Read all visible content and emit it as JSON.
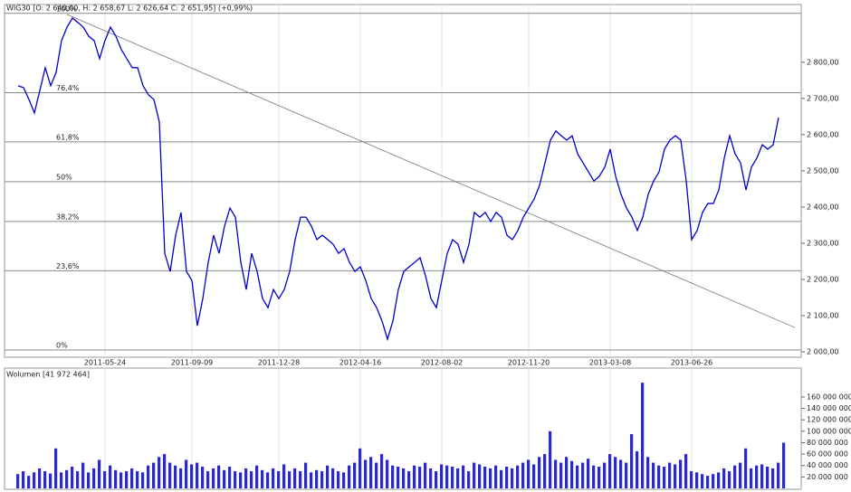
{
  "chart_data": [
    {
      "type": "line",
      "title": "WIG30 [O: 2 640,00, H: 2 658,67  L: 2 626,64  C: 2 651,95] (+0,99%)",
      "categories": [
        null,
        null,
        null,
        null,
        null,
        null,
        null,
        null,
        null,
        null,
        null,
        null,
        null,
        null,
        null,
        null,
        "2011-05-24",
        null,
        null,
        null,
        null,
        null,
        null,
        null,
        null,
        null,
        null,
        null,
        null,
        null,
        null,
        null,
        "2011-09-09",
        null,
        null,
        null,
        null,
        null,
        null,
        null,
        null,
        null,
        null,
        null,
        null,
        null,
        null,
        null,
        "2011-12-28",
        null,
        null,
        null,
        null,
        null,
        null,
        null,
        null,
        null,
        null,
        null,
        null,
        null,
        null,
        "2012-04-16",
        null,
        null,
        null,
        null,
        null,
        null,
        null,
        null,
        null,
        null,
        null,
        null,
        null,
        null,
        "2012-08-02",
        null,
        null,
        null,
        null,
        null,
        null,
        null,
        null,
        null,
        null,
        null,
        null,
        null,
        null,
        null,
        "2012-11-20",
        null,
        null,
        null,
        null,
        null,
        null,
        null,
        null,
        null,
        null,
        null,
        null,
        null,
        null,
        "2013-03-08",
        null,
        null,
        null,
        null,
        null,
        null,
        null,
        null,
        null,
        null,
        null,
        null,
        null,
        null,
        "2013-06-26",
        null,
        null,
        null,
        null,
        null,
        null,
        null,
        null,
        null,
        null,
        null,
        null,
        null,
        null,
        null,
        null
      ],
      "values": [
        2735,
        2730,
        2697,
        2660,
        2722,
        2785,
        2735,
        2772,
        2860,
        2897,
        2922,
        2910,
        2897,
        2872,
        2860,
        2810,
        2860,
        2897,
        2872,
        2835,
        2810,
        2785,
        2785,
        2735,
        2710,
        2697,
        2635,
        2272,
        2222,
        2322,
        2385,
        2222,
        2197,
        2072,
        2147,
        2247,
        2322,
        2272,
        2347,
        2397,
        2372,
        2247,
        2172,
        2272,
        2222,
        2147,
        2122,
        2172,
        2147,
        2172,
        2222,
        2310,
        2372,
        2372,
        2347,
        2310,
        2322,
        2310,
        2297,
        2272,
        2285,
        2247,
        2222,
        2235,
        2197,
        2147,
        2122,
        2085,
        2035,
        2085,
        2172,
        2222,
        2235,
        2247,
        2260,
        2210,
        2147,
        2122,
        2197,
        2272,
        2310,
        2297,
        2247,
        2297,
        2385,
        2372,
        2385,
        2360,
        2385,
        2372,
        2322,
        2310,
        2335,
        2372,
        2397,
        2422,
        2460,
        2522,
        2585,
        2610,
        2597,
        2585,
        2597,
        2547,
        2522,
        2497,
        2472,
        2485,
        2510,
        2560,
        2485,
        2435,
        2397,
        2372,
        2335,
        2372,
        2435,
        2472,
        2497,
        2560,
        2585,
        2597,
        2585,
        2472,
        2310,
        2335,
        2385,
        2410,
        2410,
        2447,
        2535,
        2597,
        2547,
        2522,
        2447,
        2510,
        2535,
        2572,
        2560,
        2572,
        2647
      ],
      "color": "#0000cc",
      "ylim": [
        1985,
        2957
      ],
      "yticks": [
        {
          "value": 2000,
          "label": "2 000,00"
        },
        {
          "value": 2100,
          "label": "2 100,00"
        },
        {
          "value": 2200,
          "label": "2 200,00"
        },
        {
          "value": 2300,
          "label": "2 300,00"
        },
        {
          "value": 2400,
          "label": "2 400,00"
        },
        {
          "value": 2500,
          "label": "2 500,00"
        },
        {
          "value": 2600,
          "label": "2 600,00"
        },
        {
          "value": 2700,
          "label": "2 700,00"
        },
        {
          "value": 2800,
          "label": "2 800,00"
        }
      ],
      "levels": [
        {
          "value": 2935,
          "label": "100%"
        },
        {
          "value": 2716,
          "label": "76,4%"
        },
        {
          "value": 2580,
          "label": "61,8%"
        },
        {
          "value": 2470,
          "label": "50%"
        },
        {
          "value": 2360,
          "label": "38,2%"
        },
        {
          "value": 2224,
          "label": "23,6%"
        },
        {
          "value": 2005,
          "label": "0%"
        }
      ],
      "trendline": {
        "x": [
          9,
          143
        ],
        "y": [
          2932,
          2067
        ]
      },
      "grid": true
    },
    {
      "type": "bar",
      "title": "Wolumen [41 972 464]",
      "values": [
        25000000,
        30000000,
        22000000,
        28000000,
        35000000,
        30000000,
        26000000,
        70000000,
        28000000,
        32000000,
        38000000,
        30000000,
        45000000,
        28000000,
        35000000,
        50000000,
        30000000,
        40000000,
        32000000,
        28000000,
        30000000,
        35000000,
        30000000,
        28000000,
        40000000,
        45000000,
        55000000,
        60000000,
        45000000,
        40000000,
        35000000,
        50000000,
        42000000,
        45000000,
        38000000,
        30000000,
        35000000,
        40000000,
        32000000,
        38000000,
        30000000,
        28000000,
        35000000,
        30000000,
        40000000,
        32000000,
        28000000,
        35000000,
        30000000,
        42000000,
        30000000,
        35000000,
        30000000,
        45000000,
        28000000,
        32000000,
        30000000,
        40000000,
        35000000,
        30000000,
        28000000,
        40000000,
        45000000,
        70000000,
        50000000,
        55000000,
        45000000,
        60000000,
        50000000,
        40000000,
        38000000,
        35000000,
        30000000,
        40000000,
        38000000,
        45000000,
        35000000,
        30000000,
        42000000,
        40000000,
        38000000,
        35000000,
        40000000,
        30000000,
        45000000,
        42000000,
        38000000,
        35000000,
        40000000,
        32000000,
        38000000,
        35000000,
        40000000,
        45000000,
        50000000,
        42000000,
        55000000,
        60000000,
        100000000,
        50000000,
        45000000,
        55000000,
        48000000,
        40000000,
        45000000,
        52000000,
        40000000,
        38000000,
        45000000,
        60000000,
        55000000,
        50000000,
        45000000,
        95000000,
        65000000,
        185000000,
        55000000,
        45000000,
        40000000,
        38000000,
        45000000,
        42000000,
        50000000,
        60000000,
        30000000,
        28000000,
        25000000,
        22000000,
        25000000,
        28000000,
        35000000,
        30000000,
        40000000,
        45000000,
        70000000,
        35000000,
        40000000,
        42000000,
        38000000,
        35000000,
        45000000,
        80000000
      ],
      "color": "#2a2acc",
      "ylim": [
        0,
        190000000
      ],
      "yticks": [
        {
          "value": 20000000,
          "label": "20 000 000"
        },
        {
          "value": 40000000,
          "label": "40 000 000"
        },
        {
          "value": 60000000,
          "label": "60 000 000"
        },
        {
          "value": 80000000,
          "label": "80 000 000"
        },
        {
          "value": 100000000,
          "label": "100 000 000"
        },
        {
          "value": 120000000,
          "label": "120 000 000"
        },
        {
          "value": 140000000,
          "label": "140 000 000"
        },
        {
          "value": 160000000,
          "label": "160 000 000"
        }
      ],
      "grid": true
    }
  ]
}
